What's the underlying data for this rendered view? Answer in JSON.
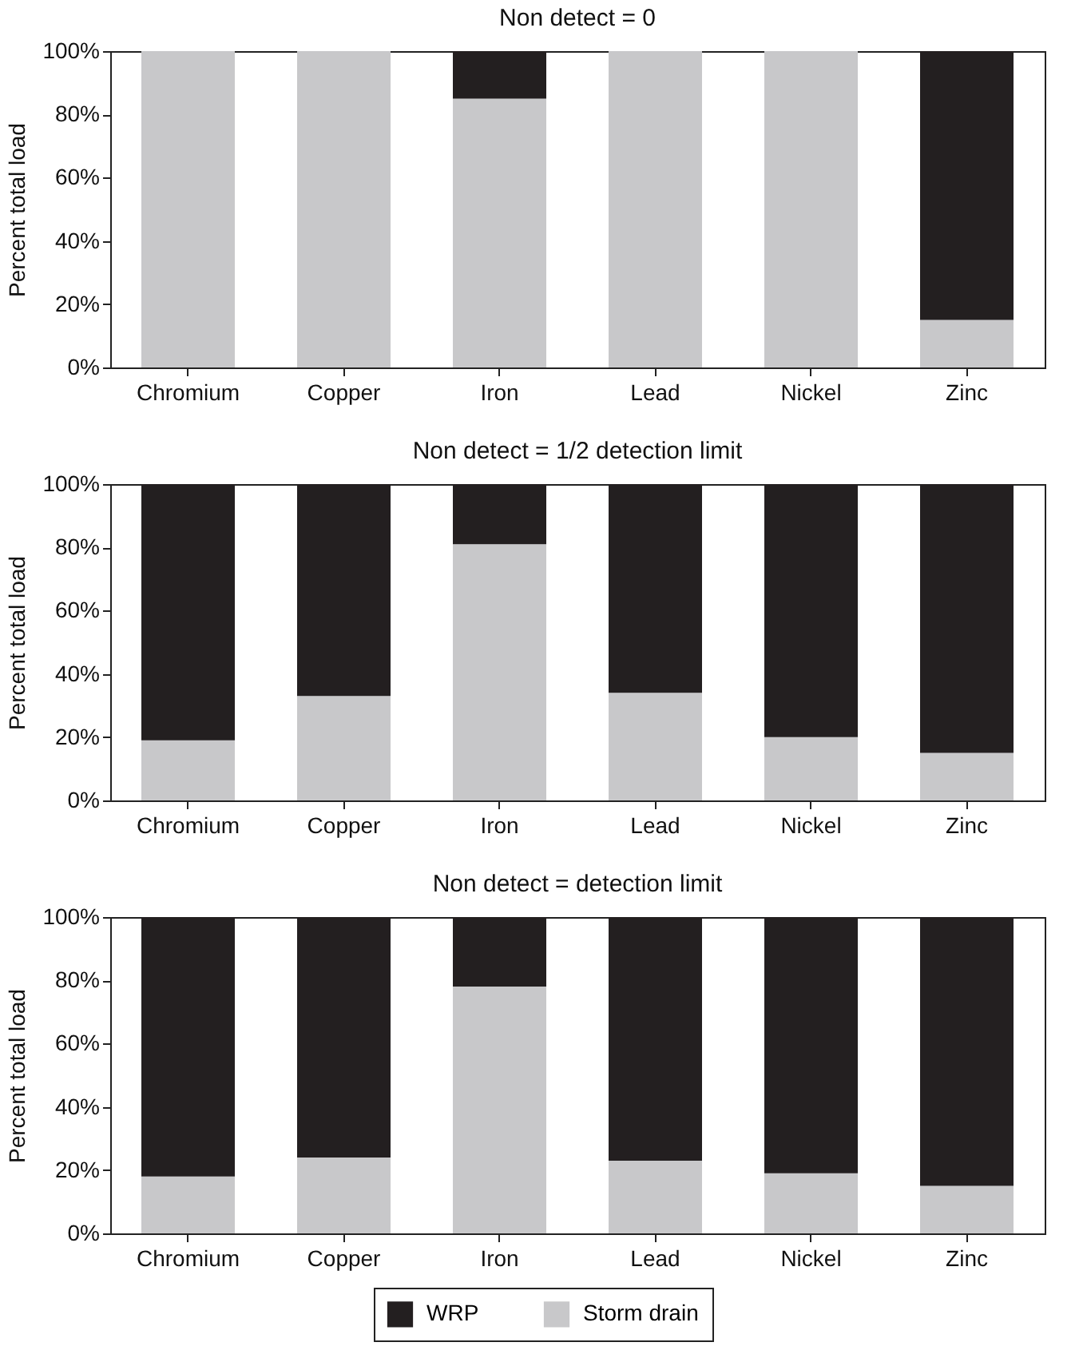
{
  "chart_data": [
    {
      "type": "bar",
      "stacked": true,
      "title": "Non detect = 0",
      "ylabel": "Percent total load",
      "categories": [
        "Chromium",
        "Copper",
        "Iron",
        "Lead",
        "Nickel",
        "Zinc"
      ],
      "series": [
        {
          "color": "#c8c8ca",
          "values": [
            100,
            100,
            85,
            100,
            100,
            15
          ]
        },
        {
          "color": "#231f20",
          "values": [
            0,
            0,
            15,
            0,
            0,
            85
          ]
        }
      ],
      "ylim": [
        0,
        100
      ],
      "yticks": [
        {
          "value": 0,
          "label": "0%"
        },
        {
          "value": 20,
          "label": "20%"
        },
        {
          "value": 40,
          "label": "40%"
        },
        {
          "value": 60,
          "label": "60%"
        },
        {
          "value": 80,
          "label": "80%"
        },
        {
          "value": 100,
          "label": "100%"
        }
      ],
      "grid": false
    },
    {
      "type": "bar",
      "stacked": true,
      "title": "Non detect = 1/2 detection limit",
      "ylabel": "Percent total load",
      "categories": [
        "Chromium",
        "Copper",
        "Iron",
        "Lead",
        "Nickel",
        "Zinc"
      ],
      "series": [
        {
          "color": "#c8c8ca",
          "values": [
            19,
            33,
            81,
            34,
            20,
            15
          ]
        },
        {
          "color": "#231f20",
          "values": [
            81,
            67,
            19,
            66,
            80,
            85
          ]
        }
      ],
      "ylim": [
        0,
        100
      ],
      "yticks": [
        {
          "value": 0,
          "label": "0%"
        },
        {
          "value": 20,
          "label": "20%"
        },
        {
          "value": 40,
          "label": "40%"
        },
        {
          "value": 60,
          "label": "60%"
        },
        {
          "value": 80,
          "label": "80%"
        },
        {
          "value": 100,
          "label": "100%"
        }
      ],
      "grid": false
    },
    {
      "type": "bar",
      "stacked": true,
      "title": "Non detect = detection limit",
      "ylabel": "Percent total load",
      "categories": [
        "Chromium",
        "Copper",
        "Iron",
        "Lead",
        "Nickel",
        "Zinc"
      ],
      "series": [
        {
          "name": "Storm drain",
          "color": "#c8c8ca",
          "values": [
            18,
            24,
            78,
            23,
            19,
            15
          ]
        },
        {
          "name": "WRP",
          "color": "#231f20",
          "values": [
            82,
            76,
            22,
            77,
            81,
            85
          ]
        }
      ],
      "ylim": [
        0,
        100
      ],
      "yticks": [
        {
          "value": 0,
          "label": "0%"
        },
        {
          "value": 20,
          "label": "20%"
        },
        {
          "value": 40,
          "label": "40%"
        },
        {
          "value": 60,
          "label": "60%"
        },
        {
          "value": 80,
          "label": "80%"
        },
        {
          "value": 100,
          "label": "100%"
        }
      ],
      "grid": false,
      "legend": "bottom"
    }
  ]
}
